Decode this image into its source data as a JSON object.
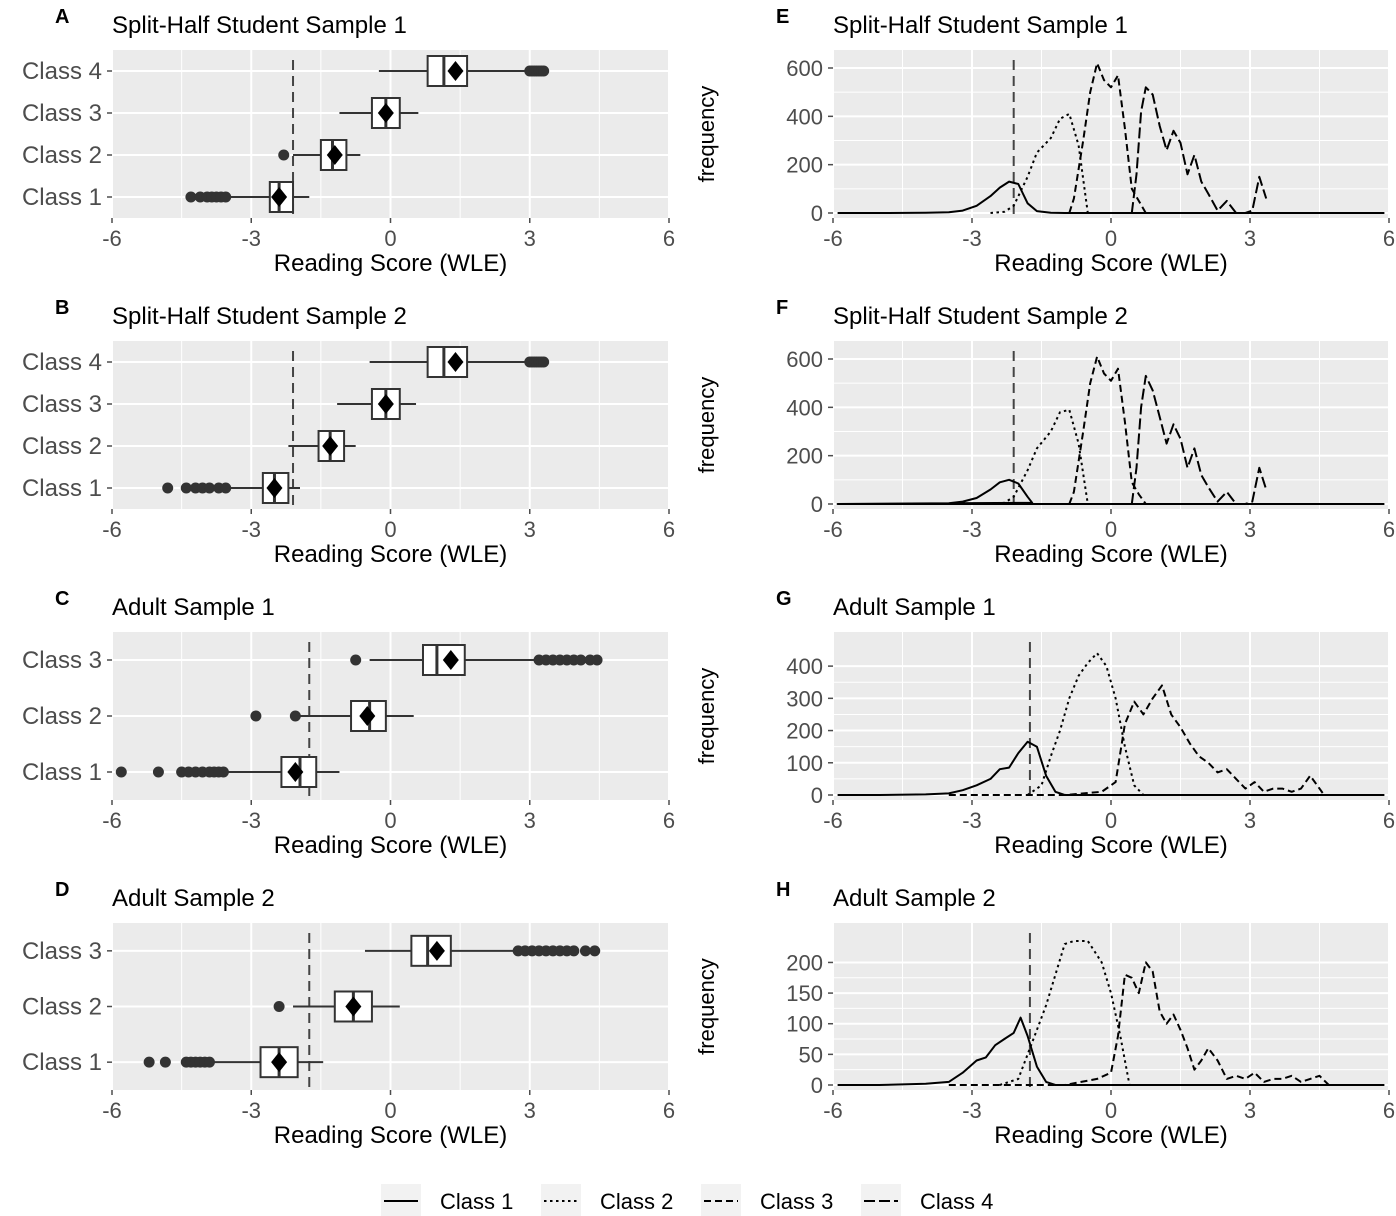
{
  "chart_data": [
    {
      "panel": "A",
      "title": "Split-Half Student Sample 1",
      "type": "boxplot",
      "xlabel": "Reading Score (WLE)",
      "xlim": [
        -6,
        6
      ],
      "xticks": [
        "-6",
        "-3",
        "0",
        "3",
        "6"
      ],
      "xtick_values": [
        -6,
        -3,
        0,
        3,
        6
      ],
      "threshold": -2.1,
      "categories": [
        "Class 4",
        "Class 3",
        "Class 2",
        "Class 1"
      ],
      "boxes": [
        {
          "whisker_low": -0.25,
          "q1": 0.8,
          "median": 1.15,
          "q3": 1.65,
          "whisker_high": 3.0,
          "mean": 1.4,
          "outliers": [
            3.0,
            3.05,
            3.1,
            3.15,
            3.2,
            3.25,
            3.3
          ]
        },
        {
          "whisker_low": -1.1,
          "q1": -0.4,
          "median": -0.1,
          "q3": 0.2,
          "whisker_high": 0.6,
          "mean": -0.1,
          "outliers": []
        },
        {
          "whisker_low": -2.1,
          "q1": -1.5,
          "median": -1.25,
          "q3": -0.95,
          "whisker_high": -0.65,
          "mean": -1.2,
          "outliers": [
            -2.3
          ]
        },
        {
          "whisker_low": -3.5,
          "q1": -2.6,
          "median": -2.4,
          "q3": -2.1,
          "whisker_high": -1.75,
          "mean": -2.4,
          "outliers": [
            -4.3,
            -4.1,
            -3.95,
            -3.85,
            -3.75,
            -3.65,
            -3.55
          ]
        }
      ]
    },
    {
      "panel": "B",
      "title": "Split-Half Student Sample 2",
      "type": "boxplot",
      "xlabel": "Reading Score (WLE)",
      "xlim": [
        -6,
        6
      ],
      "xticks": [
        "-6",
        "-3",
        "0",
        "3",
        "6"
      ],
      "xtick_values": [
        -6,
        -3,
        0,
        3,
        6
      ],
      "threshold": -2.1,
      "categories": [
        "Class 4",
        "Class 3",
        "Class 2",
        "Class 1"
      ],
      "boxes": [
        {
          "whisker_low": -0.45,
          "q1": 0.8,
          "median": 1.15,
          "q3": 1.65,
          "whisker_high": 3.0,
          "mean": 1.4,
          "outliers": [
            3.0,
            3.05,
            3.1,
            3.15,
            3.2,
            3.25,
            3.3
          ]
        },
        {
          "whisker_low": -1.15,
          "q1": -0.4,
          "median": -0.1,
          "q3": 0.2,
          "whisker_high": 0.55,
          "mean": -0.1,
          "outliers": []
        },
        {
          "whisker_low": -2.2,
          "q1": -1.55,
          "median": -1.3,
          "q3": -1.0,
          "whisker_high": -0.75,
          "mean": -1.3,
          "outliers": []
        },
        {
          "whisker_low": -3.5,
          "q1": -2.75,
          "median": -2.5,
          "q3": -2.2,
          "whisker_high": -1.95,
          "mean": -2.5,
          "outliers": [
            -4.8,
            -4.4,
            -4.2,
            -4.05,
            -3.9,
            -3.7,
            -3.55
          ]
        }
      ]
    },
    {
      "panel": "C",
      "title": "Adult Sample 1",
      "type": "boxplot",
      "xlabel": "Reading Score (WLE)",
      "xlim": [
        -6,
        6
      ],
      "xticks": [
        "-6",
        "-3",
        "0",
        "3",
        "6"
      ],
      "xtick_values": [
        -6,
        -3,
        0,
        3,
        6
      ],
      "threshold": -1.75,
      "categories": [
        "Class 3",
        "Class 2",
        "Class 1"
      ],
      "boxes": [
        {
          "whisker_low": -0.45,
          "q1": 0.7,
          "median": 1.0,
          "q3": 1.6,
          "whisker_high": 3.1,
          "mean": 1.3,
          "outliers": [
            -0.75,
            3.2,
            3.35,
            3.5,
            3.65,
            3.8,
            3.95,
            4.1,
            4.3,
            4.45
          ]
        },
        {
          "whisker_low": -2.05,
          "q1": -0.85,
          "median": -0.45,
          "q3": -0.1,
          "whisker_high": 0.5,
          "mean": -0.5,
          "outliers": [
            -2.9,
            -2.05
          ]
        },
        {
          "whisker_low": -3.5,
          "q1": -2.35,
          "median": -1.95,
          "q3": -1.6,
          "whisker_high": -1.1,
          "mean": -2.05,
          "outliers": [
            -5.8,
            -5.0,
            -4.5,
            -4.35,
            -4.2,
            -4.05,
            -3.9,
            -3.8,
            -3.7,
            -3.6
          ]
        }
      ]
    },
    {
      "panel": "D",
      "title": "Adult Sample 2",
      "type": "boxplot",
      "xlabel": "Reading Score (WLE)",
      "xlim": [
        -6,
        6
      ],
      "xticks": [
        "-6",
        "-3",
        "0",
        "3",
        "6"
      ],
      "xtick_values": [
        -6,
        -3,
        0,
        3,
        6
      ],
      "threshold": -1.75,
      "categories": [
        "Class 3",
        "Class 2",
        "Class 1"
      ],
      "boxes": [
        {
          "whisker_low": -0.55,
          "q1": 0.45,
          "median": 0.8,
          "q3": 1.3,
          "whisker_high": 2.7,
          "mean": 1.0,
          "outliers": [
            2.75,
            2.9,
            3.05,
            3.2,
            3.35,
            3.5,
            3.65,
            3.8,
            3.95,
            4.2,
            4.4
          ]
        },
        {
          "whisker_low": -2.1,
          "q1": -1.2,
          "median": -0.8,
          "q3": -0.4,
          "whisker_high": 0.2,
          "mean": -0.8,
          "outliers": [
            -2.4
          ]
        },
        {
          "whisker_low": -3.8,
          "q1": -2.8,
          "median": -2.4,
          "q3": -2.0,
          "whisker_high": -1.45,
          "mean": -2.4,
          "outliers": [
            -5.2,
            -4.85,
            -4.4,
            -4.3,
            -4.2,
            -4.1,
            -4.0,
            -3.9
          ]
        }
      ]
    },
    {
      "panel": "E",
      "title": "Split-Half Student Sample 1",
      "type": "line",
      "xlabel": "Reading Score (WLE)",
      "ylabel": "frequency",
      "xlim": [
        -6,
        6
      ],
      "ylim": [
        0,
        600
      ],
      "xticks": [
        "-6",
        "-3",
        "0",
        "3",
        "6"
      ],
      "xtick_values": [
        -6,
        -3,
        0,
        3,
        6
      ],
      "yticks": [
        "0",
        "200",
        "400",
        "600"
      ],
      "ytick_values": [
        0,
        200,
        400,
        600
      ],
      "threshold": -2.1,
      "series": [
        {
          "dash": "solid",
          "x": [
            -5.9,
            -5.0,
            -4.0,
            -3.5,
            -3.2,
            -2.9,
            -2.6,
            -2.4,
            -2.2,
            -2.0,
            -1.8,
            -1.6,
            -1.3,
            -1.0,
            5.9
          ],
          "y": [
            0,
            0,
            1,
            3,
            10,
            30,
            70,
            105,
            130,
            120,
            40,
            8,
            1,
            0,
            0
          ]
        },
        {
          "dash": "dotted",
          "x": [
            -2.6,
            -2.3,
            -2.1,
            -1.8,
            -1.6,
            -1.3,
            -1.1,
            -0.9,
            -0.7,
            -0.5
          ],
          "y": [
            0,
            5,
            30,
            150,
            250,
            310,
            390,
            410,
            280,
            0
          ]
        },
        {
          "dash": "dashdot",
          "x": [
            -0.9,
            -0.8,
            -0.6,
            -0.45,
            -0.3,
            -0.15,
            0.0,
            0.15,
            0.3,
            0.45,
            0.6,
            0.75
          ],
          "y": [
            0,
            60,
            300,
            500,
            620,
            550,
            520,
            570,
            350,
            100,
            50,
            0
          ]
        },
        {
          "dash": "dashed",
          "x": [
            0.45,
            0.55,
            0.65,
            0.75,
            0.9,
            1.05,
            1.2,
            1.35,
            1.5,
            1.65,
            1.8,
            1.95,
            2.1,
            2.3,
            2.5,
            2.7,
            2.9,
            3.05,
            3.2,
            3.35
          ],
          "y": [
            0,
            160,
            420,
            520,
            490,
            360,
            260,
            340,
            290,
            160,
            240,
            130,
            80,
            10,
            50,
            0,
            0,
            10,
            150,
            60
          ]
        }
      ]
    },
    {
      "panel": "F",
      "title": "Split-Half Student Sample 2",
      "type": "line",
      "xlabel": "Reading Score (WLE)",
      "ylabel": "frequency",
      "xlim": [
        -6,
        6
      ],
      "ylim": [
        0,
        600
      ],
      "xticks": [
        "-6",
        "-3",
        "0",
        "3",
        "6"
      ],
      "xtick_values": [
        -6,
        -3,
        0,
        3,
        6
      ],
      "yticks": [
        "0",
        "200",
        "400",
        "600"
      ],
      "ytick_values": [
        0,
        200,
        400,
        600
      ],
      "threshold": -2.1,
      "series": [
        {
          "dash": "solid",
          "x": [
            -5.9,
            -5.0,
            -4.0,
            -3.5,
            -3.2,
            -2.9,
            -2.6,
            -2.4,
            -2.2,
            -2.0,
            -1.8,
            -1.7,
            -5.9,
            5.9
          ],
          "y": [
            0,
            0,
            1,
            3,
            10,
            25,
            60,
            90,
            100,
            85,
            30,
            5,
            0,
            0
          ]
        },
        {
          "dash": "dotted",
          "x": [
            -2.6,
            -2.3,
            -2.1,
            -1.8,
            -1.6,
            -1.3,
            -1.1,
            -0.9,
            -0.7,
            -0.5
          ],
          "y": [
            0,
            5,
            30,
            140,
            230,
            300,
            380,
            390,
            250,
            0
          ]
        },
        {
          "dash": "dashdot",
          "x": [
            -0.9,
            -0.8,
            -0.6,
            -0.45,
            -0.3,
            -0.15,
            0.0,
            0.15,
            0.3,
            0.45,
            0.6,
            0.75
          ],
          "y": [
            0,
            50,
            300,
            500,
            610,
            540,
            510,
            560,
            340,
            90,
            40,
            0
          ]
        },
        {
          "dash": "dashed",
          "x": [
            0.45,
            0.55,
            0.65,
            0.75,
            0.9,
            1.05,
            1.2,
            1.35,
            1.5,
            1.65,
            1.8,
            1.95,
            2.1,
            2.3,
            2.5,
            2.7,
            2.9,
            3.05,
            3.2,
            3.35
          ],
          "y": [
            0,
            150,
            400,
            530,
            470,
            360,
            250,
            330,
            270,
            150,
            230,
            120,
            70,
            10,
            50,
            0,
            0,
            10,
            150,
            60
          ]
        }
      ]
    },
    {
      "panel": "G",
      "title": "Adult Sample 1",
      "type": "line",
      "xlabel": "Reading Score (WLE)",
      "ylabel": "frequency",
      "xlim": [
        -6,
        6
      ],
      "ylim": [
        0,
        450
      ],
      "xticks": [
        "-6",
        "-3",
        "0",
        "3",
        "6"
      ],
      "xtick_values": [
        -6,
        -3,
        0,
        3,
        6
      ],
      "yticks": [
        "0",
        "100",
        "200",
        "300",
        "400"
      ],
      "ytick_values": [
        0,
        100,
        200,
        300,
        400
      ],
      "threshold": -1.75,
      "series": [
        {
          "dash": "solid",
          "x": [
            -5.9,
            -5.0,
            -4.0,
            -3.5,
            -3.2,
            -2.9,
            -2.6,
            -2.4,
            -2.2,
            -2.0,
            -1.8,
            -1.6,
            -1.4,
            -1.2,
            -1.0,
            5.9
          ],
          "y": [
            0,
            0,
            2,
            5,
            15,
            30,
            50,
            80,
            85,
            130,
            165,
            150,
            60,
            10,
            0,
            0
          ]
        },
        {
          "dash": "dotted",
          "x": [
            -1.8,
            -1.5,
            -1.3,
            -1.1,
            -0.9,
            -0.7,
            -0.5,
            -0.3,
            -0.1,
            0.1,
            0.3,
            0.5,
            0.7
          ],
          "y": [
            0,
            30,
            120,
            200,
            300,
            370,
            410,
            440,
            400,
            300,
            150,
            30,
            0
          ]
        },
        {
          "dash": "dashdot",
          "x": [
            -3.5,
            -2.0,
            -1.0,
            -0.2,
            0.1,
            0.3,
            0.5,
            0.7,
            0.9,
            1.1,
            1.3,
            1.5,
            1.7,
            1.9,
            2.1,
            2.3,
            2.5,
            2.7,
            2.9,
            3.1,
            3.3,
            3.5,
            3.7,
            3.9,
            4.1,
            4.3,
            4.5,
            4.6
          ],
          "y": [
            0,
            0,
            0,
            10,
            40,
            220,
            290,
            250,
            300,
            340,
            250,
            210,
            160,
            120,
            100,
            70,
            80,
            50,
            20,
            40,
            10,
            20,
            20,
            10,
            20,
            60,
            20,
            0
          ]
        }
      ]
    },
    {
      "panel": "H",
      "title": "Adult Sample 2",
      "type": "line",
      "xlabel": "Reading Score (WLE)",
      "ylabel": "frequency",
      "xlim": [
        -6,
        6
      ],
      "ylim": [
        0,
        235
      ],
      "xticks": [
        "-6",
        "-3",
        "0",
        "3",
        "6"
      ],
      "xtick_values": [
        -6,
        -3,
        0,
        3,
        6
      ],
      "yticks": [
        "0",
        "50",
        "100",
        "150",
        "200"
      ],
      "ytick_values": [
        0,
        50,
        100,
        150,
        200
      ],
      "threshold": -1.75,
      "series": [
        {
          "dash": "solid",
          "x": [
            -5.9,
            -5.0,
            -4.0,
            -3.5,
            -3.2,
            -2.9,
            -2.7,
            -2.5,
            -2.3,
            -2.1,
            -1.95,
            -1.8,
            -1.6,
            -1.4,
            -1.2,
            5.9
          ],
          "y": [
            0,
            0,
            2,
            5,
            20,
            40,
            45,
            65,
            75,
            85,
            110,
            80,
            30,
            5,
            0,
            0
          ]
        },
        {
          "dash": "dotted",
          "x": [
            -2.4,
            -2.0,
            -1.8,
            -1.6,
            -1.4,
            -1.2,
            -1.0,
            -0.8,
            -0.5,
            -0.2,
            0.0,
            0.2,
            0.4
          ],
          "y": [
            0,
            10,
            50,
            90,
            130,
            180,
            230,
            235,
            235,
            200,
            150,
            80,
            0
          ]
        },
        {
          "dash": "dashdot",
          "x": [
            -3.5,
            -2.0,
            -1.0,
            -0.3,
            0.0,
            0.15,
            0.3,
            0.45,
            0.6,
            0.75,
            0.9,
            1.05,
            1.2,
            1.35,
            1.5,
            1.65,
            1.8,
            1.95,
            2.1,
            2.3,
            2.5,
            2.7,
            2.9,
            3.1,
            3.3,
            3.5,
            3.7,
            3.9,
            4.1,
            4.3,
            4.5,
            4.7
          ],
          "y": [
            0,
            0,
            0,
            10,
            20,
            80,
            180,
            175,
            150,
            200,
            185,
            120,
            100,
            115,
            90,
            60,
            25,
            40,
            60,
            40,
            10,
            15,
            10,
            20,
            5,
            10,
            10,
            15,
            5,
            10,
            15,
            0
          ]
        }
      ]
    }
  ],
  "legend": {
    "position": "bottom",
    "items": [
      {
        "label": "Class 1",
        "dash": "solid"
      },
      {
        "label": "Class 2",
        "dash": "dotted"
      },
      {
        "label": "Class 3",
        "dash": "dashdot"
      },
      {
        "label": "Class 4",
        "dash": "dashed"
      }
    ]
  },
  "colors": {
    "panel_bg": "#ebebeb",
    "grid": "#ffffff",
    "ink": "#000000",
    "axis_text": "#4d4d4d",
    "outlier": "#333333",
    "threshold_line": "#444444"
  }
}
